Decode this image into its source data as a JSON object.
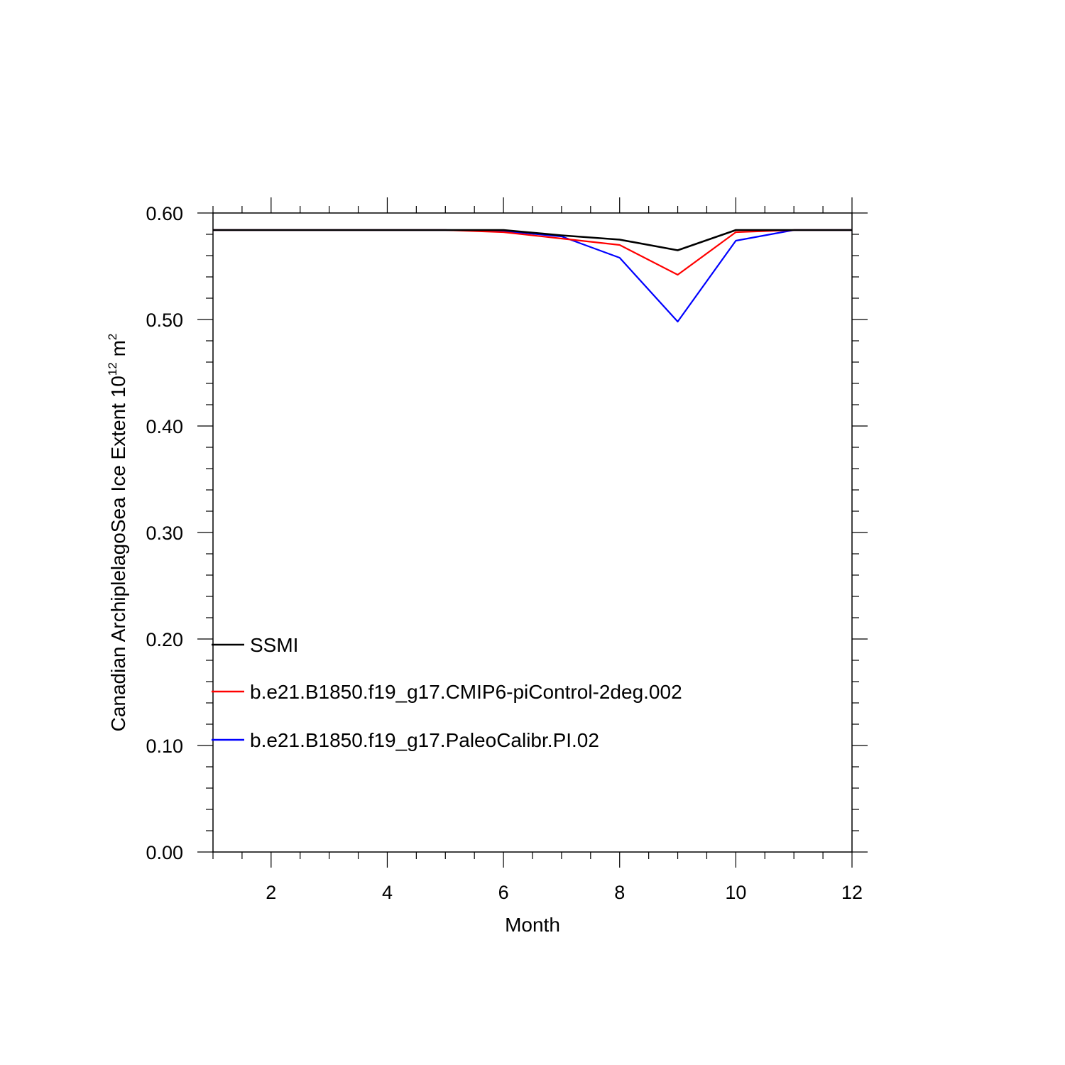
{
  "chart_data": {
    "type": "line",
    "xlabel": "Month",
    "ylabel": {
      "prefix": "Canadian ArchiplelagoSea Ice Extent 10",
      "exp1": "12",
      "mid": " m",
      "exp2": "2"
    },
    "xlim": [
      1,
      12
    ],
    "ylim": [
      0.0,
      0.6
    ],
    "x_ticks": [
      2,
      4,
      6,
      8,
      10,
      12
    ],
    "y_ticks": [
      "0.00",
      "0.10",
      "0.20",
      "0.30",
      "0.40",
      "0.50",
      "0.60"
    ],
    "grid": false,
    "legend_position": "lower-left, inside plot",
    "x": [
      1,
      2,
      3,
      4,
      5,
      6,
      7,
      8,
      9,
      10,
      11,
      12
    ],
    "series": [
      {
        "name": "SSMI",
        "color": "#000000",
        "values": [
          0.584,
          0.584,
          0.584,
          0.584,
          0.584,
          0.584,
          0.579,
          0.575,
          0.565,
          0.584,
          0.584,
          0.584
        ]
      },
      {
        "name": "b.e21.B1850.f19_g17.CMIP6-piControl-2deg.002",
        "color": "#ff0000",
        "values": [
          0.584,
          0.584,
          0.584,
          0.584,
          0.584,
          0.582,
          0.576,
          0.57,
          0.542,
          0.582,
          0.584,
          0.584
        ]
      },
      {
        "name": "b.e21.B1850.f19_g17.PaleoCalibr.PI.02",
        "color": "#0000ff",
        "values": [
          0.584,
          0.584,
          0.584,
          0.584,
          0.584,
          0.583,
          0.578,
          0.558,
          0.498,
          0.574,
          0.584,
          0.584
        ]
      }
    ]
  }
}
